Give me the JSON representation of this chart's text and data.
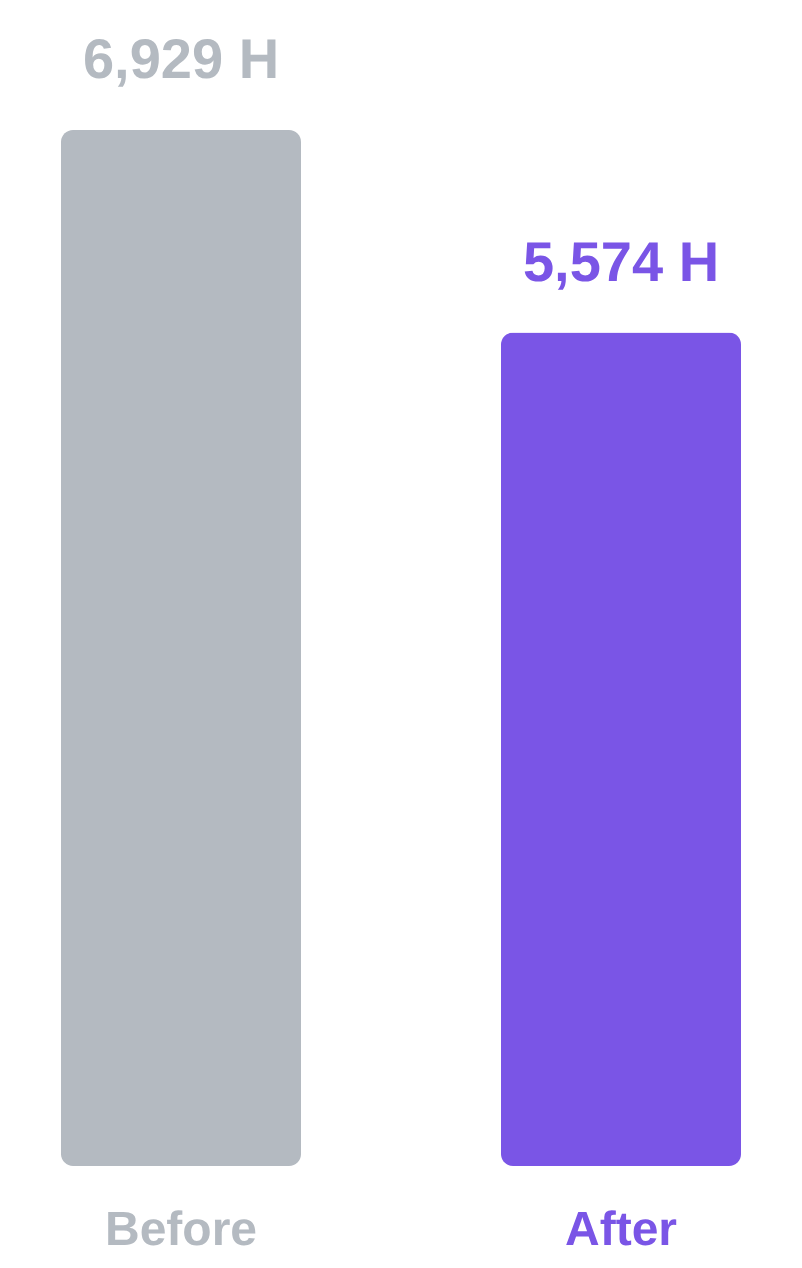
{
  "chart_data": {
    "type": "bar",
    "categories": [
      "Before",
      "After"
    ],
    "values": [
      6929,
      5574
    ],
    "colors": [
      "#b4bac1",
      "#7a55e6"
    ],
    "value_labels": [
      "6,929 H",
      "5,574 H"
    ],
    "grid": false
  }
}
